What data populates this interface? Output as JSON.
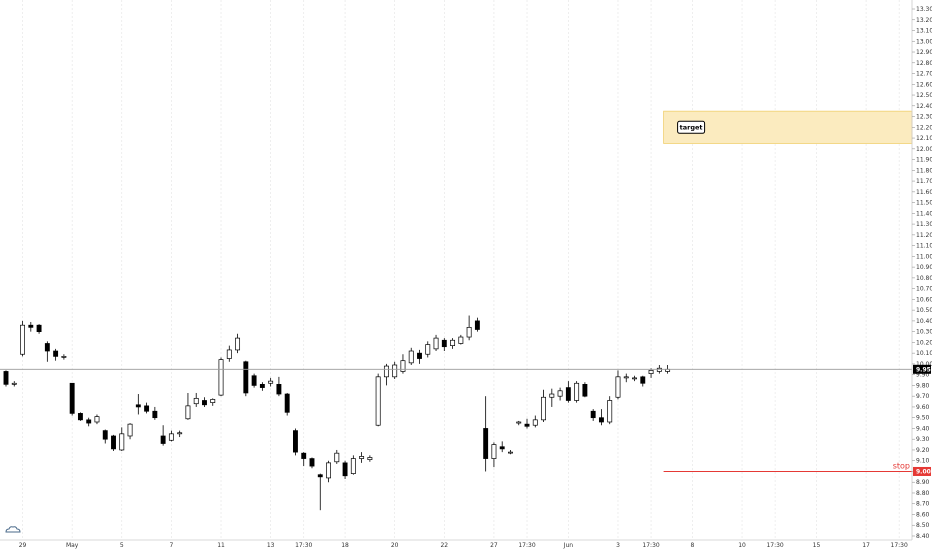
{
  "colors": {
    "background": "#ffffff",
    "grid": "#e3e3e3",
    "candle_up_fill": "#ffffff",
    "candle_down_fill": "#000000",
    "candle_border": "#000000",
    "price_line": "#9a9a9a",
    "target_fill": "#fbebbf",
    "target_border": "#f0cf6e",
    "stop": "#e53935",
    "axis_text": "#333333",
    "price_tag_bg": "#000000",
    "price_tag_text": "#ffffff"
  },
  "icons": {
    "logo": "tradingview-cloud-icon"
  },
  "chart_data": {
    "type": "candlestick",
    "y_axis": {
      "min": 8.4,
      "max": 13.3,
      "step": 0.1,
      "labels": [
        "8.40",
        "8.50",
        "8.60",
        "8.70",
        "8.80",
        "8.90",
        "9.00",
        "9.10",
        "9.20",
        "9.30",
        "9.40",
        "9.50",
        "9.60",
        "9.70",
        "9.80",
        "9.90",
        "10.00",
        "10.10",
        "10.20",
        "10.30",
        "10.40",
        "10.50",
        "10.60",
        "10.70",
        "10.80",
        "10.90",
        "11.00",
        "11.10",
        "11.20",
        "11.30",
        "11.40",
        "11.50",
        "11.60",
        "11.70",
        "11.80",
        "11.90",
        "12.00",
        "12.10",
        "12.20",
        "12.30",
        "12.40",
        "12.50",
        "12.60",
        "12.70",
        "12.80",
        "12.90",
        "13.00",
        "13.10",
        "13.20",
        "13.30"
      ]
    },
    "x_axis": {
      "slots": 110,
      "labels": [
        {
          "slot": 2,
          "text": "29"
        },
        {
          "slot": 8,
          "text": "May"
        },
        {
          "slot": 14,
          "text": "5"
        },
        {
          "slot": 20,
          "text": "7"
        },
        {
          "slot": 26,
          "text": "11"
        },
        {
          "slot": 32,
          "text": "13"
        },
        {
          "slot": 36,
          "text": "17:30"
        },
        {
          "slot": 41,
          "text": "18"
        },
        {
          "slot": 47,
          "text": "20"
        },
        {
          "slot": 53,
          "text": "22"
        },
        {
          "slot": 59,
          "text": "27"
        },
        {
          "slot": 63,
          "text": "17:30"
        },
        {
          "slot": 68,
          "text": "Jun"
        },
        {
          "slot": 74,
          "text": "3"
        },
        {
          "slot": 78,
          "text": "17:30"
        },
        {
          "slot": 83,
          "text": "8"
        },
        {
          "slot": 89,
          "text": "10"
        },
        {
          "slot": 93,
          "text": "17:30"
        },
        {
          "slot": 98,
          "text": "15"
        },
        {
          "slot": 104,
          "text": "17"
        },
        {
          "slot": 108,
          "text": "17:30"
        }
      ]
    },
    "candles": [
      [
        0,
        9.93,
        9.94,
        9.79,
        9.81
      ],
      [
        1,
        9.81,
        9.84,
        9.79,
        9.82
      ],
      [
        2,
        10.09,
        10.4,
        10.07,
        10.36
      ],
      [
        3,
        10.36,
        10.39,
        10.3,
        10.34
      ],
      [
        4,
        10.36,
        10.37,
        10.28,
        10.3
      ],
      [
        5,
        10.19,
        10.21,
        10.02,
        10.12
      ],
      [
        6,
        10.12,
        10.14,
        10.03,
        10.07
      ],
      [
        7,
        10.07,
        10.09,
        10.04,
        10.07
      ],
      [
        8,
        9.82,
        9.82,
        9.52,
        9.54
      ],
      [
        9,
        9.54,
        9.55,
        9.47,
        9.48
      ],
      [
        10,
        9.48,
        9.5,
        9.42,
        9.45
      ],
      [
        11,
        9.46,
        9.53,
        9.44,
        9.51
      ],
      [
        12,
        9.38,
        9.39,
        9.26,
        9.3
      ],
      [
        13,
        9.33,
        9.34,
        9.19,
        9.21
      ],
      [
        14,
        9.2,
        9.41,
        9.19,
        9.35
      ],
      [
        15,
        9.33,
        9.45,
        9.3,
        9.44
      ],
      [
        16,
        9.62,
        9.72,
        9.53,
        9.6
      ],
      [
        17,
        9.61,
        9.64,
        9.54,
        9.56
      ],
      [
        18,
        9.56,
        9.6,
        9.48,
        9.5
      ],
      [
        19,
        9.33,
        9.43,
        9.24,
        9.26
      ],
      [
        20,
        9.29,
        9.38,
        9.28,
        9.35
      ],
      [
        21,
        9.35,
        9.38,
        9.32,
        9.36
      ],
      [
        22,
        9.49,
        9.73,
        9.48,
        9.61
      ],
      [
        23,
        9.63,
        9.73,
        9.6,
        9.68
      ],
      [
        24,
        9.66,
        9.69,
        9.6,
        9.62
      ],
      [
        25,
        9.64,
        9.68,
        9.61,
        9.67
      ],
      [
        26,
        9.71,
        10.06,
        9.7,
        10.04
      ],
      [
        27,
        10.05,
        10.17,
        10.02,
        10.13
      ],
      [
        28,
        10.13,
        10.28,
        10.1,
        10.24
      ],
      [
        29,
        10.02,
        10.03,
        9.7,
        9.73
      ],
      [
        30,
        9.89,
        9.91,
        9.78,
        9.8
      ],
      [
        31,
        9.81,
        9.83,
        9.75,
        9.78
      ],
      [
        32,
        9.82,
        9.87,
        9.79,
        9.84
      ],
      [
        33,
        9.81,
        9.88,
        9.7,
        9.72
      ],
      [
        34,
        9.72,
        9.73,
        9.52,
        9.55
      ],
      [
        35,
        9.38,
        9.4,
        9.15,
        9.18
      ],
      [
        36,
        9.17,
        9.18,
        9.05,
        9.12
      ],
      [
        37,
        9.12,
        9.13,
        9.03,
        9.05
      ],
      [
        38,
        8.97,
        8.98,
        8.64,
        8.95
      ],
      [
        39,
        8.94,
        9.1,
        8.9,
        9.08
      ],
      [
        40,
        9.09,
        9.2,
        9.07,
        9.17
      ],
      [
        41,
        9.08,
        9.1,
        8.93,
        8.96
      ],
      [
        42,
        8.98,
        9.15,
        8.97,
        9.12
      ],
      [
        43,
        9.12,
        9.18,
        9.08,
        9.14
      ],
      [
        44,
        9.11,
        9.15,
        9.09,
        9.13
      ],
      [
        45,
        9.43,
        9.91,
        9.42,
        9.88
      ],
      [
        46,
        9.88,
        10.0,
        9.8,
        9.98
      ],
      [
        47,
        9.88,
        10.02,
        9.86,
        9.99
      ],
      [
        48,
        9.93,
        10.09,
        9.91,
        10.03
      ],
      [
        49,
        10.01,
        10.15,
        9.99,
        10.12
      ],
      [
        50,
        10.1,
        10.13,
        10.0,
        10.05
      ],
      [
        51,
        10.09,
        10.21,
        10.06,
        10.18
      ],
      [
        52,
        10.14,
        10.27,
        10.12,
        10.24
      ],
      [
        53,
        10.22,
        10.24,
        10.12,
        10.16
      ],
      [
        54,
        10.17,
        10.24,
        10.14,
        10.22
      ],
      [
        55,
        10.19,
        10.27,
        10.18,
        10.25
      ],
      [
        56,
        10.25,
        10.45,
        10.22,
        10.34
      ],
      [
        57,
        10.4,
        10.43,
        10.3,
        10.32
      ],
      [
        58,
        9.4,
        9.7,
        9.0,
        9.12
      ],
      [
        59,
        9.12,
        9.27,
        9.04,
        9.25
      ],
      [
        60,
        9.23,
        9.28,
        9.18,
        9.21
      ],
      [
        61,
        9.18,
        9.2,
        9.16,
        9.18
      ],
      [
        62,
        9.45,
        9.47,
        9.43,
        9.46
      ],
      [
        63,
        9.44,
        9.49,
        9.4,
        9.42
      ],
      [
        64,
        9.43,
        9.52,
        9.41,
        9.48
      ],
      [
        65,
        9.48,
        9.76,
        9.46,
        9.69
      ],
      [
        66,
        9.69,
        9.77,
        9.6,
        9.72
      ],
      [
        67,
        9.7,
        9.78,
        9.66,
        9.75
      ],
      [
        68,
        9.78,
        9.84,
        9.64,
        9.66
      ],
      [
        69,
        9.66,
        9.84,
        9.64,
        9.82
      ],
      [
        70,
        9.81,
        9.83,
        9.69,
        9.7
      ],
      [
        71,
        9.56,
        9.58,
        9.47,
        9.5
      ],
      [
        72,
        9.5,
        9.58,
        9.43,
        9.46
      ],
      [
        73,
        9.46,
        9.7,
        9.44,
        9.66
      ],
      [
        74,
        9.69,
        9.94,
        9.67,
        9.88
      ],
      [
        75,
        9.87,
        9.91,
        9.83,
        9.88
      ],
      [
        76,
        9.87,
        9.89,
        9.84,
        9.87
      ],
      [
        77,
        9.88,
        9.89,
        9.79,
        9.82
      ],
      [
        78,
        9.91,
        9.96,
        9.87,
        9.94
      ],
      [
        79,
        9.93,
        9.99,
        9.91,
        9.96
      ],
      [
        80,
        9.93,
        9.99,
        9.91,
        9.95
      ]
    ],
    "last_price": {
      "value": 9.95,
      "label": "9.95"
    },
    "target_zone": {
      "from": 12.05,
      "to": 12.35,
      "start_slot": 80,
      "label": "target"
    },
    "stop_line": {
      "value": 9.0,
      "start_slot": 80,
      "label": "stop",
      "price_label": "9.00"
    }
  }
}
